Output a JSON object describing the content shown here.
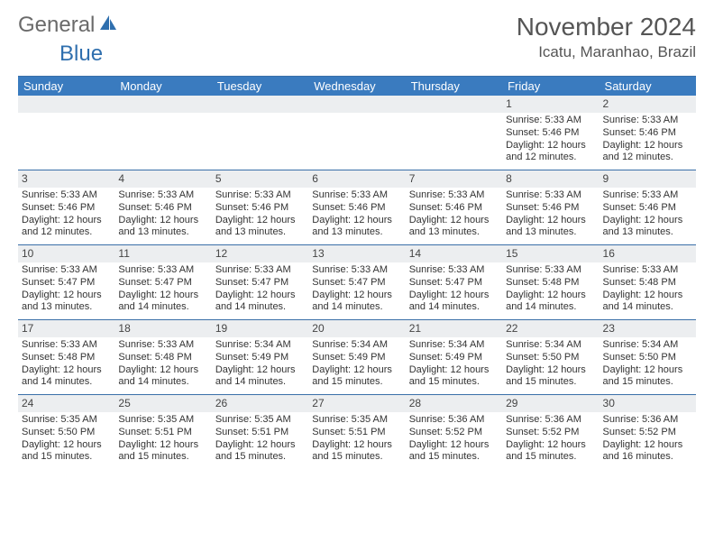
{
  "brand": {
    "name_a": "General",
    "name_b": "Blue"
  },
  "title": "November 2024",
  "location": "Icatu, Maranhao, Brazil",
  "colors": {
    "header_bg": "#3a7bbf",
    "header_text": "#ffffff",
    "daynum_bg": "#eceef0",
    "rule": "#3a6fa8",
    "text": "#333333",
    "title_text": "#555555"
  },
  "weekdays": [
    "Sunday",
    "Monday",
    "Tuesday",
    "Wednesday",
    "Thursday",
    "Friday",
    "Saturday"
  ],
  "weeks": [
    [
      null,
      null,
      null,
      null,
      null,
      {
        "n": "1",
        "rise": "5:33 AM",
        "set": "5:46 PM",
        "day": "12 hours and 12 minutes."
      },
      {
        "n": "2",
        "rise": "5:33 AM",
        "set": "5:46 PM",
        "day": "12 hours and 12 minutes."
      }
    ],
    [
      {
        "n": "3",
        "rise": "5:33 AM",
        "set": "5:46 PM",
        "day": "12 hours and 12 minutes."
      },
      {
        "n": "4",
        "rise": "5:33 AM",
        "set": "5:46 PM",
        "day": "12 hours and 13 minutes."
      },
      {
        "n": "5",
        "rise": "5:33 AM",
        "set": "5:46 PM",
        "day": "12 hours and 13 minutes."
      },
      {
        "n": "6",
        "rise": "5:33 AM",
        "set": "5:46 PM",
        "day": "12 hours and 13 minutes."
      },
      {
        "n": "7",
        "rise": "5:33 AM",
        "set": "5:46 PM",
        "day": "12 hours and 13 minutes."
      },
      {
        "n": "8",
        "rise": "5:33 AM",
        "set": "5:46 PM",
        "day": "12 hours and 13 minutes."
      },
      {
        "n": "9",
        "rise": "5:33 AM",
        "set": "5:46 PM",
        "day": "12 hours and 13 minutes."
      }
    ],
    [
      {
        "n": "10",
        "rise": "5:33 AM",
        "set": "5:47 PM",
        "day": "12 hours and 13 minutes."
      },
      {
        "n": "11",
        "rise": "5:33 AM",
        "set": "5:47 PM",
        "day": "12 hours and 14 minutes."
      },
      {
        "n": "12",
        "rise": "5:33 AM",
        "set": "5:47 PM",
        "day": "12 hours and 14 minutes."
      },
      {
        "n": "13",
        "rise": "5:33 AM",
        "set": "5:47 PM",
        "day": "12 hours and 14 minutes."
      },
      {
        "n": "14",
        "rise": "5:33 AM",
        "set": "5:47 PM",
        "day": "12 hours and 14 minutes."
      },
      {
        "n": "15",
        "rise": "5:33 AM",
        "set": "5:48 PM",
        "day": "12 hours and 14 minutes."
      },
      {
        "n": "16",
        "rise": "5:33 AM",
        "set": "5:48 PM",
        "day": "12 hours and 14 minutes."
      }
    ],
    [
      {
        "n": "17",
        "rise": "5:33 AM",
        "set": "5:48 PM",
        "day": "12 hours and 14 minutes."
      },
      {
        "n": "18",
        "rise": "5:33 AM",
        "set": "5:48 PM",
        "day": "12 hours and 14 minutes."
      },
      {
        "n": "19",
        "rise": "5:34 AM",
        "set": "5:49 PM",
        "day": "12 hours and 14 minutes."
      },
      {
        "n": "20",
        "rise": "5:34 AM",
        "set": "5:49 PM",
        "day": "12 hours and 15 minutes."
      },
      {
        "n": "21",
        "rise": "5:34 AM",
        "set": "5:49 PM",
        "day": "12 hours and 15 minutes."
      },
      {
        "n": "22",
        "rise": "5:34 AM",
        "set": "5:50 PM",
        "day": "12 hours and 15 minutes."
      },
      {
        "n": "23",
        "rise": "5:34 AM",
        "set": "5:50 PM",
        "day": "12 hours and 15 minutes."
      }
    ],
    [
      {
        "n": "24",
        "rise": "5:35 AM",
        "set": "5:50 PM",
        "day": "12 hours and 15 minutes."
      },
      {
        "n": "25",
        "rise": "5:35 AM",
        "set": "5:51 PM",
        "day": "12 hours and 15 minutes."
      },
      {
        "n": "26",
        "rise": "5:35 AM",
        "set": "5:51 PM",
        "day": "12 hours and 15 minutes."
      },
      {
        "n": "27",
        "rise": "5:35 AM",
        "set": "5:51 PM",
        "day": "12 hours and 15 minutes."
      },
      {
        "n": "28",
        "rise": "5:36 AM",
        "set": "5:52 PM",
        "day": "12 hours and 15 minutes."
      },
      {
        "n": "29",
        "rise": "5:36 AM",
        "set": "5:52 PM",
        "day": "12 hours and 15 minutes."
      },
      {
        "n": "30",
        "rise": "5:36 AM",
        "set": "5:52 PM",
        "day": "12 hours and 16 minutes."
      }
    ]
  ],
  "labels": {
    "sunrise": "Sunrise: ",
    "sunset": "Sunset: ",
    "daylight": "Daylight: "
  }
}
